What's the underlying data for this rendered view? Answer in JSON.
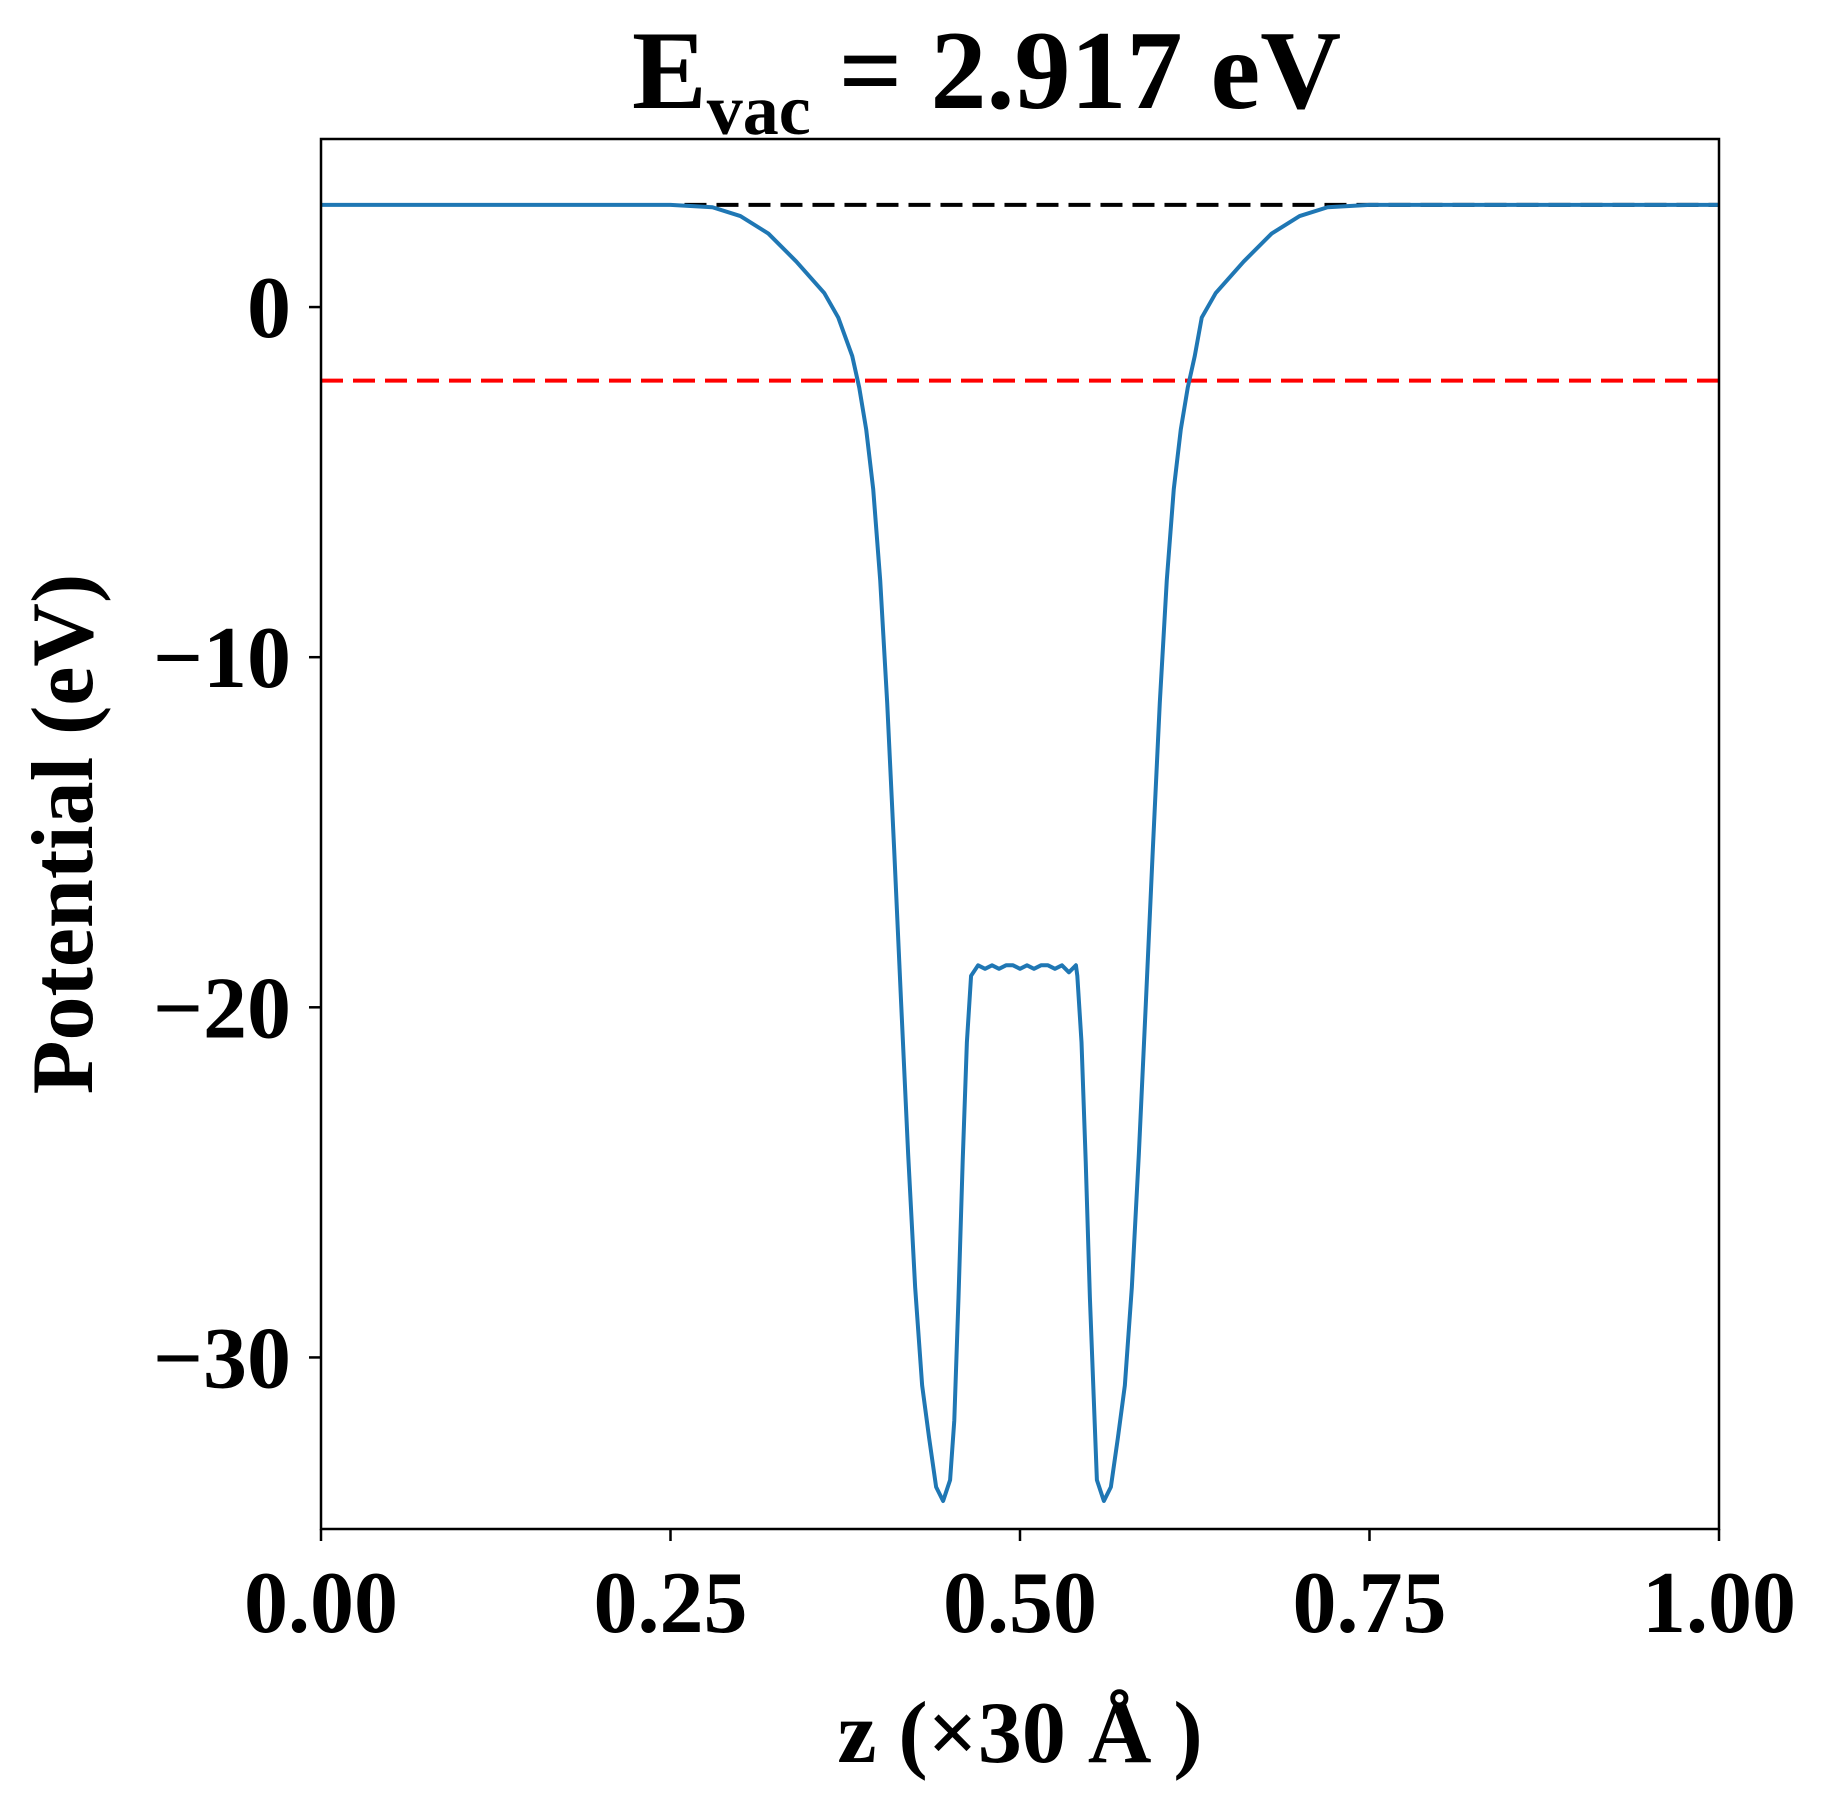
{
  "chart_data": {
    "type": "line",
    "title": {
      "prefix": "E",
      "subscript": "vac",
      "suffix": " = 2.917 eV"
    },
    "xlabel": "z (×30 Å )",
    "ylabel": "Potential (eV)",
    "xlim": [
      0.0,
      1.0
    ],
    "ylim": [
      -34.9,
      4.8
    ],
    "xticks": [
      0.0,
      0.25,
      0.5,
      0.75,
      1.0
    ],
    "xtick_labels": [
      "0.00",
      "0.25",
      "0.50",
      "0.75",
      "1.00"
    ],
    "yticks": [
      0,
      -10,
      -20,
      -30
    ],
    "ytick_labels": [
      "0",
      "−10",
      "−20",
      "−30"
    ],
    "grid": false,
    "series": [
      {
        "color": "#1f77b4",
        "style": "solid",
        "x": [
          0.0,
          0.05,
          0.1,
          0.15,
          0.2,
          0.25,
          0.28,
          0.3,
          0.32,
          0.34,
          0.36,
          0.37,
          0.38,
          0.385,
          0.39,
          0.395,
          0.4,
          0.405,
          0.41,
          0.415,
          0.42,
          0.425,
          0.43,
          0.435,
          0.44,
          0.445,
          0.45,
          0.453,
          0.456,
          0.459,
          0.462,
          0.465,
          0.47,
          0.475,
          0.48,
          0.485,
          0.49,
          0.495,
          0.5,
          0.505,
          0.51,
          0.515,
          0.52,
          0.525,
          0.53,
          0.535,
          0.54,
          0.541,
          0.544,
          0.547,
          0.55,
          0.555,
          0.56,
          0.565,
          0.57,
          0.575,
          0.58,
          0.585,
          0.59,
          0.595,
          0.6,
          0.605,
          0.61,
          0.615,
          0.62,
          0.625,
          0.63,
          0.64,
          0.66,
          0.68,
          0.7,
          0.72,
          0.75,
          0.8,
          0.85,
          0.9,
          0.95,
          1.0
        ],
        "y": [
          2.917,
          2.917,
          2.917,
          2.917,
          2.917,
          2.917,
          2.85,
          2.6,
          2.1,
          1.3,
          0.4,
          -0.3,
          -1.4,
          -2.3,
          -3.5,
          -5.2,
          -7.8,
          -11.3,
          -15.5,
          -19.9,
          -24.2,
          -28.0,
          -30.8,
          -32.3,
          -33.7,
          -34.1,
          -33.5,
          -31.8,
          -28.3,
          -24.4,
          -21.0,
          -19.1,
          -18.8,
          -18.9,
          -18.8,
          -18.9,
          -18.8,
          -18.8,
          -18.9,
          -18.8,
          -18.9,
          -18.8,
          -18.8,
          -18.9,
          -18.8,
          -19.0,
          -18.8,
          -19.1,
          -21.0,
          -24.4,
          -28.3,
          -33.5,
          -34.1,
          -33.7,
          -32.3,
          -30.8,
          -28.0,
          -24.2,
          -19.9,
          -15.5,
          -11.3,
          -7.8,
          -5.2,
          -3.5,
          -2.3,
          -1.4,
          -0.3,
          0.4,
          1.3,
          2.1,
          2.6,
          2.85,
          2.917,
          2.917,
          2.917,
          2.917,
          2.917,
          2.917
        ]
      },
      {
        "color": "#000000",
        "style": "dashed",
        "x": [
          0.26,
          1.0
        ],
        "y": [
          2.917,
          2.917
        ]
      },
      {
        "color": "#ff0000",
        "style": "dashed",
        "x": [
          0.0,
          1.0
        ],
        "y": [
          -2.1,
          -2.1
        ]
      }
    ]
  }
}
